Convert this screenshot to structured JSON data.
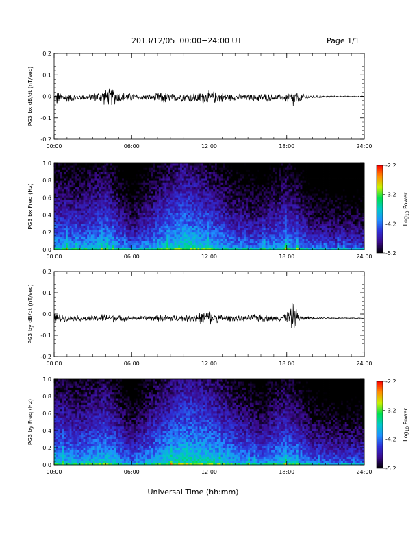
{
  "header": {
    "title": "2013/12/05  00:00−24:00 UT",
    "page": "Page 1/1"
  },
  "footer": {
    "xlabel": "Universal Time (hh:mm)"
  },
  "colors": {
    "trace": "#000000",
    "colormap": [
      "#000000",
      "#3a0a8a",
      "#2f2fd6",
      "#1e90ff",
      "#00c8c8",
      "#00e050",
      "#c8f000",
      "#ff8c00",
      "#ff0000"
    ]
  },
  "chart_data": [
    {
      "type": "line",
      "name": "bx-waveform",
      "ylabel": "PG3 bx dB/dt (nT/sec)",
      "xlim": [
        "00:00",
        "24:00"
      ],
      "ylim": [
        -0.2,
        0.2
      ],
      "xticks": [
        "00:00",
        "06:00",
        "12:00",
        "18:00",
        "24:00"
      ],
      "yticks": [
        "-0.2",
        "-0.1",
        "0.0",
        "0.1",
        "0.2"
      ],
      "x_hours": [
        0.0,
        0.5,
        1.0,
        1.5,
        2.0,
        2.5,
        3.0,
        3.5,
        4.0,
        4.5,
        5.0,
        5.5,
        6.0,
        6.5,
        7.0,
        7.5,
        8.0,
        8.5,
        9.0,
        9.5,
        10.0,
        10.5,
        11.0,
        11.5,
        12.0,
        12.5,
        13.0,
        13.5,
        14.0,
        14.5,
        15.0,
        15.5,
        16.0,
        16.5,
        17.0,
        17.5,
        18.0,
        18.5,
        19.0,
        19.5,
        20.0,
        20.5,
        21.0,
        21.5,
        22.0,
        22.5,
        23.0,
        23.5,
        24.0
      ],
      "y_max": [
        0.03,
        0.02,
        0.015,
        0.01,
        0.01,
        0.01,
        0.015,
        0.03,
        0.035,
        0.045,
        0.025,
        0.02,
        0.015,
        0.01,
        0.01,
        0.012,
        0.02,
        0.025,
        0.015,
        0.015,
        0.015,
        0.02,
        0.025,
        0.025,
        0.03,
        0.025,
        0.02,
        0.015,
        0.012,
        0.01,
        0.01,
        0.012,
        0.02,
        0.015,
        0.01,
        0.01,
        0.015,
        0.035,
        0.015,
        0.008,
        0.005,
        0.004,
        0.003,
        0.003,
        0.002,
        0.002,
        0.002,
        0.002,
        0.002
      ],
      "y_min": [
        -0.06,
        -0.035,
        -0.03,
        -0.025,
        -0.02,
        -0.02,
        -0.025,
        -0.035,
        -0.045,
        -0.05,
        -0.03,
        -0.03,
        -0.025,
        -0.02,
        -0.02,
        -0.02,
        -0.03,
        -0.04,
        -0.03,
        -0.025,
        -0.025,
        -0.03,
        -0.035,
        -0.04,
        -0.04,
        -0.035,
        -0.03,
        -0.025,
        -0.02,
        -0.02,
        -0.02,
        -0.025,
        -0.03,
        -0.025,
        -0.02,
        -0.02,
        -0.03,
        -0.065,
        -0.03,
        -0.015,
        -0.01,
        -0.008,
        -0.006,
        -0.005,
        -0.004,
        -0.004,
        -0.004,
        -0.004,
        -0.004
      ]
    },
    {
      "type": "heatmap",
      "name": "bx-spectrogram",
      "ylabel": "PG3 bx Freq (Hz)",
      "xlim": [
        "00:00",
        "24:00"
      ],
      "ylim": [
        0.0,
        1.0
      ],
      "xticks": [
        "00:00",
        "06:00",
        "12:00",
        "18:00",
        "24:00"
      ],
      "yticks": [
        "0.0",
        "0.2",
        "0.4",
        "0.6",
        "0.8",
        "1.0"
      ],
      "colorbar": {
        "label": "Log10 Power",
        "ticks": [
          "-2.2",
          "-3.2",
          "-4.2",
          "-5.2"
        ],
        "range": [
          -5.2,
          -2.2
        ]
      },
      "x_hours": [
        0,
        2,
        4,
        6,
        8,
        10,
        12,
        14,
        16,
        18,
        20,
        22,
        24
      ],
      "low_freq_log_power": [
        -3.6,
        -3.7,
        -3.5,
        -4.0,
        -3.6,
        -3.3,
        -3.5,
        -3.8,
        -3.9,
        -3.6,
        -4.0,
        -4.1,
        -4.1
      ]
    },
    {
      "type": "line",
      "name": "by-waveform",
      "ylabel": "PG3 by dB/dt (nT/sec)",
      "xlim": [
        "00:00",
        "24:00"
      ],
      "ylim": [
        -0.2,
        0.2
      ],
      "xticks": [
        "00:00",
        "06:00",
        "12:00",
        "18:00",
        "24:00"
      ],
      "yticks": [
        "-0.2",
        "-0.1",
        "0.0",
        "0.1",
        "0.2"
      ],
      "x_hours": [
        0.0,
        0.5,
        1.0,
        1.5,
        2.0,
        2.5,
        3.0,
        3.5,
        4.0,
        4.5,
        5.0,
        5.5,
        6.0,
        6.5,
        7.0,
        7.5,
        8.0,
        8.5,
        9.0,
        9.5,
        10.0,
        10.5,
        11.0,
        11.5,
        12.0,
        12.5,
        13.0,
        13.5,
        14.0,
        14.5,
        15.0,
        15.5,
        16.0,
        16.5,
        17.0,
        17.5,
        18.0,
        18.5,
        19.0,
        19.5,
        20.0,
        20.5,
        21.0,
        21.5,
        22.0,
        22.5,
        23.0,
        23.5,
        24.0
      ],
      "y_max": [
        0.005,
        0.0,
        -0.005,
        -0.005,
        -0.008,
        -0.01,
        -0.005,
        0.0,
        0.005,
        0.0,
        -0.005,
        -0.008,
        -0.01,
        -0.01,
        -0.008,
        -0.005,
        -0.005,
        0.0,
        0.0,
        -0.005,
        -0.005,
        0.0,
        0.005,
        0.015,
        0.02,
        0.005,
        0.0,
        -0.005,
        -0.005,
        -0.008,
        -0.005,
        0.0,
        0.0,
        -0.005,
        -0.008,
        0.0,
        0.01,
        0.065,
        -0.005,
        -0.01,
        -0.012,
        -0.014,
        -0.015,
        -0.016,
        -0.017,
        -0.017,
        -0.017,
        -0.018,
        -0.018
      ],
      "y_min": [
        -0.045,
        -0.04,
        -0.035,
        -0.035,
        -0.035,
        -0.035,
        -0.035,
        -0.04,
        -0.04,
        -0.04,
        -0.035,
        -0.035,
        -0.03,
        -0.03,
        -0.03,
        -0.035,
        -0.035,
        -0.04,
        -0.04,
        -0.035,
        -0.035,
        -0.04,
        -0.045,
        -0.05,
        -0.055,
        -0.045,
        -0.04,
        -0.035,
        -0.035,
        -0.035,
        -0.035,
        -0.035,
        -0.04,
        -0.035,
        -0.035,
        -0.035,
        -0.04,
        -0.09,
        -0.035,
        -0.03,
        -0.025,
        -0.024,
        -0.023,
        -0.023,
        -0.023,
        -0.023,
        -0.022,
        -0.022,
        -0.022
      ]
    },
    {
      "type": "heatmap",
      "name": "by-spectrogram",
      "ylabel": "PG3 by Freq (Hz)",
      "xlim": [
        "00:00",
        "24:00"
      ],
      "ylim": [
        0.0,
        1.0
      ],
      "xticks": [
        "00:00",
        "06:00",
        "12:00",
        "18:00",
        "24:00"
      ],
      "yticks": [
        "0.0",
        "0.2",
        "0.4",
        "0.6",
        "0.8",
        "1.0"
      ],
      "colorbar": {
        "label": "Log10 Power",
        "ticks": [
          "-2.2",
          "-3.2",
          "-4.2",
          "-5.2"
        ],
        "range": [
          -5.2,
          -2.2
        ]
      },
      "x_hours": [
        0,
        2,
        4,
        6,
        8,
        10,
        12,
        14,
        16,
        18,
        20,
        22,
        24
      ],
      "low_freq_log_power": [
        -3.5,
        -3.6,
        -3.4,
        -3.9,
        -3.5,
        -3.2,
        -3.3,
        -3.6,
        -3.8,
        -3.5,
        -3.9,
        -4.0,
        -4.0
      ]
    }
  ]
}
